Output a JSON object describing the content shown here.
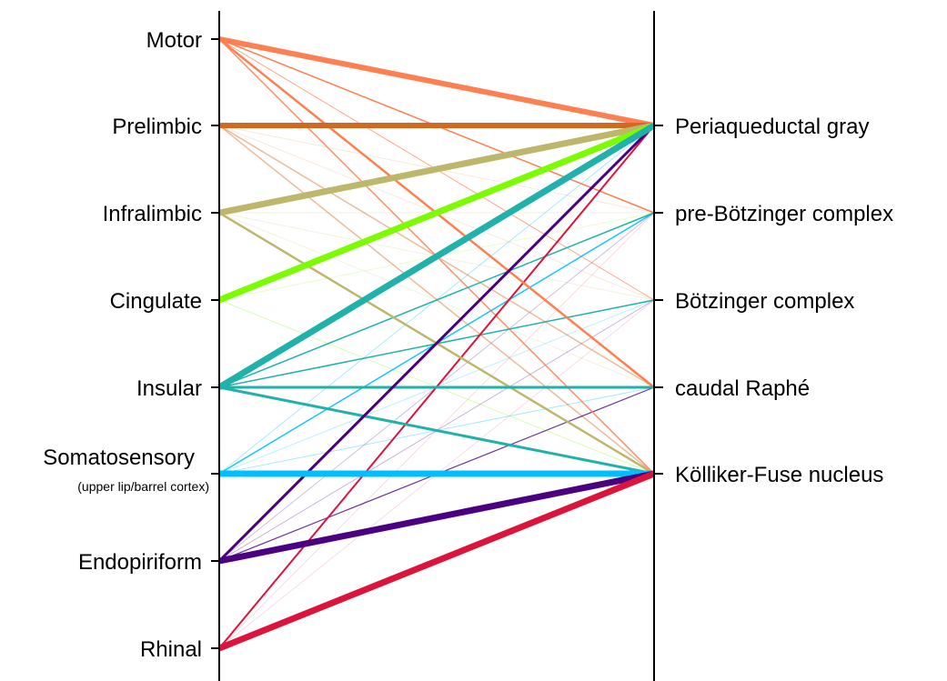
{
  "diagram": {
    "left_nodes": [
      {
        "id": "motor",
        "label": "Motor"
      },
      {
        "id": "prelimbic",
        "label": "Prelimbic"
      },
      {
        "id": "infralimbic",
        "label": "Infralimbic"
      },
      {
        "id": "cingulate",
        "label": "Cingulate"
      },
      {
        "id": "insular",
        "label": "Insular"
      },
      {
        "id": "somatosensory",
        "label": "Somatosensory",
        "sublabel": "(upper lip/barrel cortex)"
      },
      {
        "id": "endopiriform",
        "label": "Endopiriform"
      },
      {
        "id": "rhinal",
        "label": "Rhinal"
      }
    ],
    "right_nodes": [
      {
        "id": "pag",
        "label": "Periaqueductal gray"
      },
      {
        "id": "prebotc",
        "label": "pre-Bötzinger complex"
      },
      {
        "id": "botc",
        "label": "Bötzinger complex"
      },
      {
        "id": "raphe",
        "label": "caudal Raphé"
      },
      {
        "id": "kf",
        "label": "Kölliker-Fuse nucleus"
      }
    ],
    "colors": {
      "motor": "#ff7f50",
      "prelimbic": "#d2691e",
      "infralimbic": "#bdb76b",
      "cingulate": "#7cfc00",
      "insular": "#20b2aa",
      "somatosensory": "#00bfff",
      "endopiriform": "#4b0082",
      "rhinal": "#dc143c"
    },
    "connections": [
      {
        "from": "motor",
        "to": "pag",
        "weight": 6,
        "opacity": 1
      },
      {
        "from": "motor",
        "to": "prebotc",
        "weight": 1.5,
        "opacity": 1
      },
      {
        "from": "motor",
        "to": "botc",
        "weight": 1,
        "opacity": 0.7
      },
      {
        "from": "motor",
        "to": "raphe",
        "weight": 2.5,
        "opacity": 1
      },
      {
        "from": "motor",
        "to": "kf",
        "weight": 1.5,
        "opacity": 0.9
      },
      {
        "from": "prelimbic",
        "to": "pag",
        "weight": 6,
        "opacity": 1
      },
      {
        "from": "prelimbic",
        "to": "prebotc",
        "weight": 1,
        "opacity": 0.15
      },
      {
        "from": "prelimbic",
        "to": "botc",
        "weight": 1,
        "opacity": 0.15
      },
      {
        "from": "prelimbic",
        "to": "raphe",
        "weight": 1.5,
        "opacity": 0.45
      },
      {
        "from": "prelimbic",
        "to": "kf",
        "weight": 1.5,
        "opacity": 0.45
      },
      {
        "from": "infralimbic",
        "to": "pag",
        "weight": 7,
        "opacity": 1
      },
      {
        "from": "infralimbic",
        "to": "prebotc",
        "weight": 1,
        "opacity": 0.2
      },
      {
        "from": "infralimbic",
        "to": "botc",
        "weight": 1,
        "opacity": 0.2
      },
      {
        "from": "infralimbic",
        "to": "raphe",
        "weight": 1,
        "opacity": 0.2
      },
      {
        "from": "infralimbic",
        "to": "kf",
        "weight": 2.5,
        "opacity": 1
      },
      {
        "from": "cingulate",
        "to": "pag",
        "weight": 7,
        "opacity": 1
      },
      {
        "from": "cingulate",
        "to": "prebotc",
        "weight": 1,
        "opacity": 0.2
      },
      {
        "from": "cingulate",
        "to": "kf",
        "weight": 1,
        "opacity": 0.3
      },
      {
        "from": "insular",
        "to": "pag",
        "weight": 7,
        "opacity": 1
      },
      {
        "from": "insular",
        "to": "prebotc",
        "weight": 1.5,
        "opacity": 1
      },
      {
        "from": "insular",
        "to": "botc",
        "weight": 1.5,
        "opacity": 1
      },
      {
        "from": "insular",
        "to": "raphe",
        "weight": 3,
        "opacity": 1
      },
      {
        "from": "insular",
        "to": "kf",
        "weight": 3,
        "opacity": 1
      },
      {
        "from": "somatosensory",
        "to": "pag",
        "weight": 1,
        "opacity": 0.35
      },
      {
        "from": "somatosensory",
        "to": "prebotc",
        "weight": 1.5,
        "opacity": 0.9
      },
      {
        "from": "somatosensory",
        "to": "botc",
        "weight": 1,
        "opacity": 0.25
      },
      {
        "from": "somatosensory",
        "to": "raphe",
        "weight": 1,
        "opacity": 0.35
      },
      {
        "from": "somatosensory",
        "to": "kf",
        "weight": 7,
        "opacity": 1
      },
      {
        "from": "endopiriform",
        "to": "pag",
        "weight": 3,
        "opacity": 1
      },
      {
        "from": "endopiriform",
        "to": "prebotc",
        "weight": 1,
        "opacity": 0.25
      },
      {
        "from": "endopiriform",
        "to": "botc",
        "weight": 1,
        "opacity": 0.3
      },
      {
        "from": "endopiriform",
        "to": "raphe",
        "weight": 1.2,
        "opacity": 0.8
      },
      {
        "from": "endopiriform",
        "to": "kf",
        "weight": 7,
        "opacity": 1
      },
      {
        "from": "rhinal",
        "to": "pag",
        "weight": 2,
        "opacity": 1
      },
      {
        "from": "rhinal",
        "to": "prebotc",
        "weight": 1,
        "opacity": 0.15
      },
      {
        "from": "rhinal",
        "to": "botc",
        "weight": 1,
        "opacity": 0.15
      },
      {
        "from": "rhinal",
        "to": "kf",
        "weight": 7,
        "opacity": 1
      }
    ]
  }
}
